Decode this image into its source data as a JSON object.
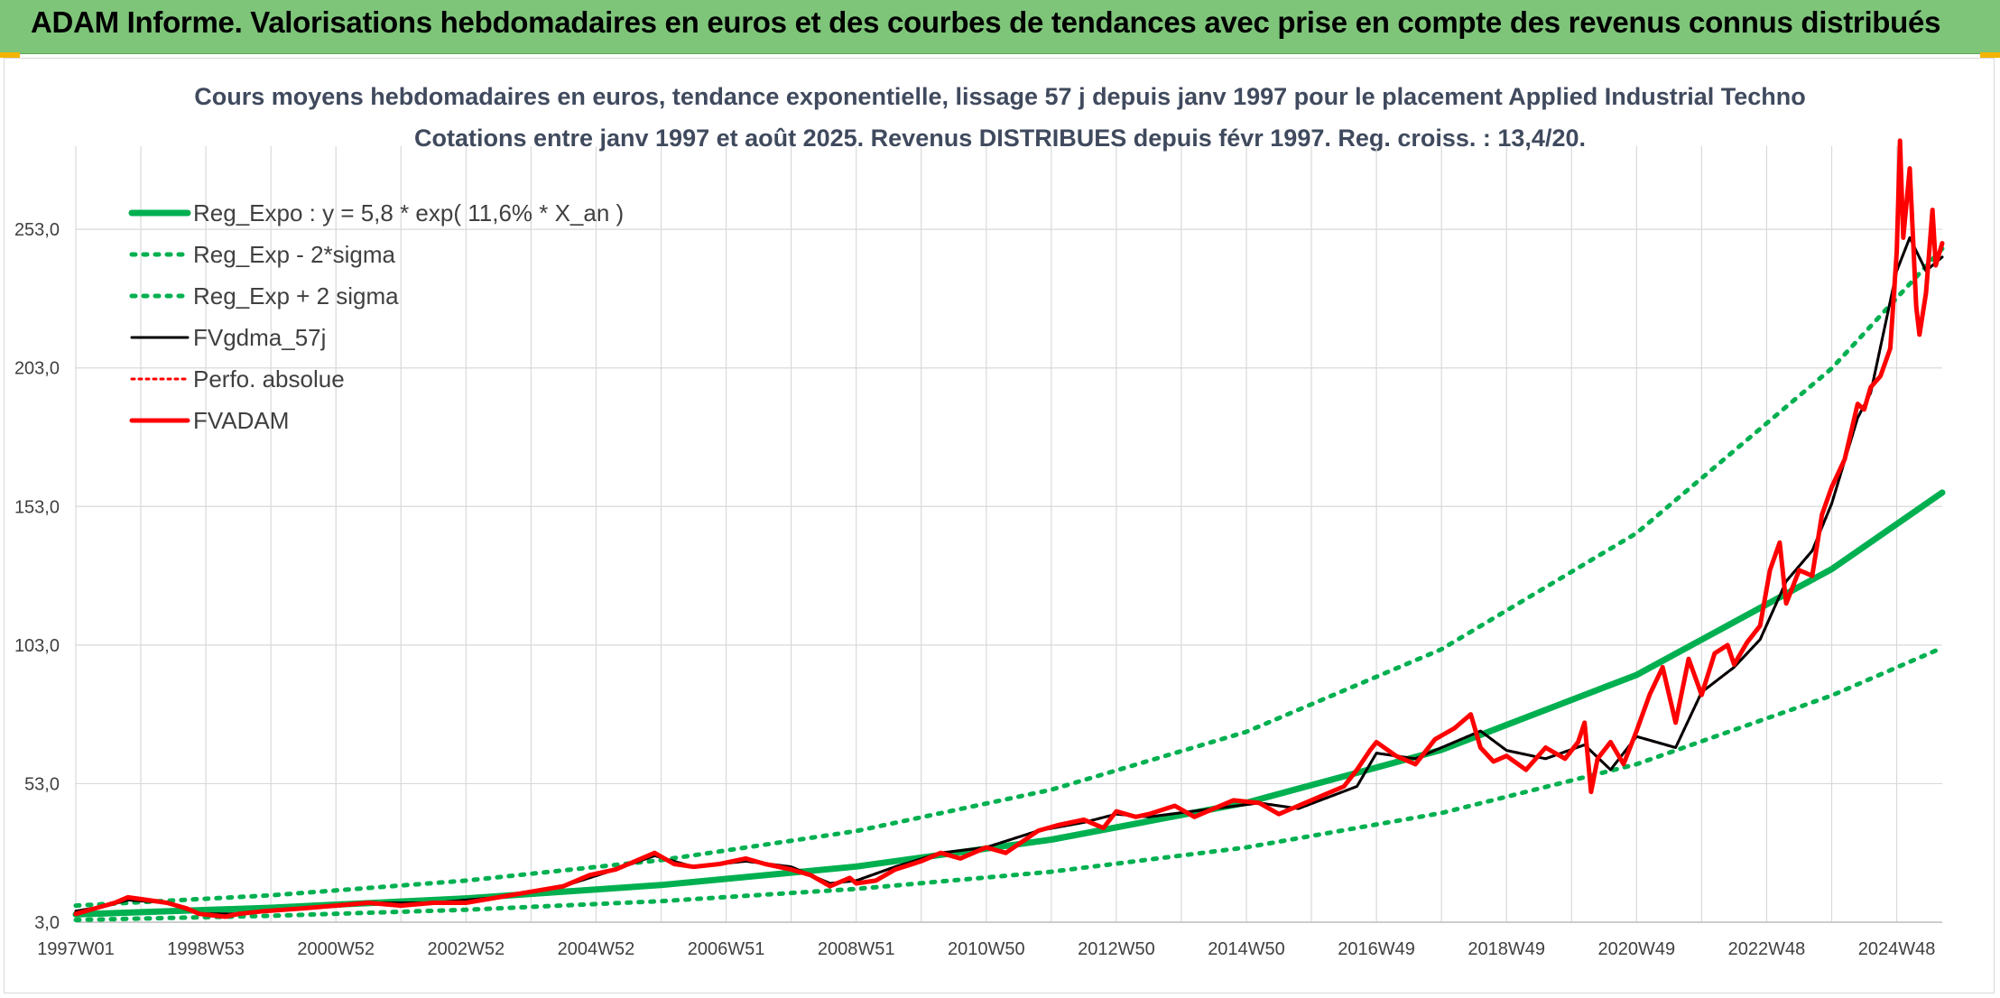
{
  "banner": {
    "title": "ADAM Informe. Valorisations hebdomadaires en euros et des courbes de tendances avec prise en compte des revenus connus distribués"
  },
  "colors": {
    "banner_bg": "#7ec57a",
    "regression": "#00b050",
    "smoothed": "#000000",
    "adam": "#ff0000",
    "grid": "#d9d9d9"
  },
  "chart_data": {
    "type": "line",
    "title": "Cours moyens hebdomadaires en euros, tendance exponentielle, lissage 57 j depuis janv 1997 pour le placement Applied Industrial Techno",
    "subtitle": "Cotations entre janv 1997 et août 2025. Revenus DISTRIBUES depuis févr 1997. Reg. croiss. : 13,4/20.",
    "xlabel": "",
    "ylabel": "",
    "xlim": [
      1997.0,
      2025.7
    ],
    "ylim": [
      3,
      283
    ],
    "y_ticks": [
      "3,0",
      "53,0",
      "103,0",
      "153,0",
      "203,0",
      "253,0"
    ],
    "y_tick_values": [
      3,
      53,
      103,
      153,
      203,
      253
    ],
    "x_ticks": [
      "1997W01",
      "1998W53",
      "2000W52",
      "2002W52",
      "2004W52",
      "2006W51",
      "2008W51",
      "2010W50",
      "2012W50",
      "2014W50",
      "2016W49",
      "2018W49",
      "2020W49",
      "2022W48",
      "2024W48"
    ],
    "x_tick_values": [
      1997.0,
      1999.0,
      2001.0,
      2003.0,
      2005.0,
      2007.0,
      2009.0,
      2011.0,
      2013.0,
      2015.0,
      2017.0,
      2019.0,
      2021.0,
      2023.0,
      2025.0
    ],
    "grid": true,
    "legend_position": "top-left",
    "series": [
      {
        "name": "Reg_Expo : y = 5,8 * exp( 11,6% *  X_an )",
        "style": "solid-thick",
        "color": "#00b050",
        "x": [
          1997.0,
          2000.0,
          2003.0,
          2006.0,
          2009.0,
          2012.0,
          2015.0,
          2018.0,
          2021.0,
          2024.0,
          2025.7
        ],
        "y": [
          5.8,
          8.2,
          11.6,
          16.4,
          23.1,
          32.8,
          46.1,
          65.2,
          92.2,
          130.4,
          158.0
        ]
      },
      {
        "name": "Reg_Exp - 2*sigma",
        "style": "dotted",
        "color": "#00b050",
        "x": [
          1997.0,
          2000.0,
          2003.0,
          2006.0,
          2009.0,
          2012.0,
          2015.0,
          2018.0,
          2021.0,
          2024.0,
          2025.7
        ],
        "y": [
          3.8,
          5.3,
          7.5,
          10.6,
          15.0,
          21.2,
          30.0,
          42.4,
          60.0,
          84.8,
          102.0
        ]
      },
      {
        "name": "Reg_Exp + 2 sigma",
        "style": "dotted",
        "color": "#00b050",
        "x": [
          1997.0,
          2000.0,
          2003.0,
          2006.0,
          2009.0,
          2012.0,
          2015.0,
          2018.0,
          2021.0,
          2024.0,
          2025.7
        ],
        "y": [
          9.0,
          12.7,
          18.0,
          25.4,
          35.9,
          50.8,
          71.7,
          101.5,
          143.4,
          202.8,
          246.0
        ]
      },
      {
        "name": "FVgdma_57j",
        "style": "solid",
        "color": "#000000",
        "x": [
          1997.0,
          1997.5,
          1997.8,
          1998.4,
          1998.9,
          1999.5,
          2000.5,
          2001.5,
          2002.5,
          2003.5,
          2004.5,
          2005.3,
          2005.9,
          2006.5,
          2007.3,
          2008.0,
          2008.6,
          2009.0,
          2009.6,
          2010.3,
          2011.0,
          2011.8,
          2012.5,
          2013.0,
          2013.5,
          2014.5,
          2015.2,
          2015.8,
          2016.7,
          2017.0,
          2017.6,
          2018.2,
          2018.6,
          2019.0,
          2019.6,
          2020.2,
          2020.6,
          2021.0,
          2021.6,
          2022.0,
          2022.5,
          2022.9,
          2023.3,
          2023.7,
          2024.0,
          2024.4,
          2024.6,
          2025.0,
          2025.2,
          2025.45,
          2025.7
        ],
        "y": [
          7,
          9,
          11,
          10,
          6,
          6,
          8,
          10,
          10,
          12,
          16,
          22,
          27,
          23,
          25,
          23,
          17,
          18,
          23,
          28,
          30,
          36,
          39,
          42,
          41,
          44,
          46,
          44,
          52,
          64,
          62,
          68,
          72,
          65,
          62,
          67,
          58,
          70,
          66,
          86,
          95,
          105,
          126,
          137,
          154,
          185,
          194,
          238,
          250,
          238,
          243
        ]
      },
      {
        "name": "Perfo. absolue",
        "style": "dotted",
        "color": "#ff0000",
        "x": [
          1997.0,
          1997.5,
          1997.8,
          1998.4,
          1998.9,
          1999.5,
          2000.5,
          2001.5,
          2002.5,
          2003.5,
          2004.5,
          2005.3,
          2005.9,
          2006.5,
          2007.3,
          2008.0,
          2008.6,
          2009.0,
          2009.6,
          2010.3,
          2011.0,
          2011.8,
          2012.5,
          2013.0,
          2013.5,
          2014.5,
          2015.2,
          2015.8,
          2016.7,
          2017.0,
          2017.6,
          2018.2,
          2018.6,
          2019.0,
          2019.6,
          2020.2,
          2020.6,
          2021.0,
          2021.6,
          2022.0,
          2022.5,
          2022.9,
          2023.3,
          2023.7,
          2024.0,
          2024.4,
          2024.6,
          2025.0,
          2025.2,
          2025.45,
          2025.7
        ],
        "y": [
          7,
          9,
          11,
          10,
          6,
          6,
          8,
          10,
          10,
          12,
          16,
          22,
          27,
          23,
          25,
          23,
          17,
          18,
          23,
          28,
          30,
          36,
          39,
          42,
          41,
          44,
          46,
          44,
          52,
          64,
          62,
          68,
          72,
          65,
          62,
          67,
          58,
          70,
          66,
          86,
          95,
          105,
          126,
          137,
          154,
          185,
          194,
          238,
          250,
          238,
          243
        ]
      },
      {
        "name": "FVADAM",
        "style": "solid-thick",
        "color": "#ff0000",
        "x": [
          1997.0,
          1997.3,
          1997.6,
          1997.8,
          1998.1,
          1998.4,
          1998.7,
          1998.9,
          1999.3,
          1999.5,
          1999.9,
          2000.5,
          2001.0,
          2001.5,
          2002.0,
          2002.5,
          2003.0,
          2003.5,
          2004.0,
          2004.5,
          2004.9,
          2005.3,
          2005.6,
          2005.9,
          2006.2,
          2006.5,
          2006.9,
          2007.3,
          2007.6,
          2008.0,
          2008.3,
          2008.6,
          2008.9,
          2009.0,
          2009.3,
          2009.6,
          2010.0,
          2010.3,
          2010.6,
          2011.0,
          2011.3,
          2011.8,
          2012.1,
          2012.5,
          2012.8,
          2013.0,
          2013.3,
          2013.5,
          2013.9,
          2014.2,
          2014.5,
          2014.8,
          2015.2,
          2015.5,
          2015.8,
          2016.2,
          2016.5,
          2016.7,
          2016.9,
          2017.0,
          2017.3,
          2017.6,
          2017.9,
          2018.2,
          2018.45,
          2018.6,
          2018.8,
          2019.0,
          2019.3,
          2019.6,
          2019.9,
          2020.1,
          2020.2,
          2020.3,
          2020.4,
          2020.6,
          2020.8,
          2021.0,
          2021.2,
          2021.4,
          2021.6,
          2021.8,
          2022.0,
          2022.2,
          2022.4,
          2022.5,
          2022.7,
          2022.9,
          2023.05,
          2023.2,
          2023.3,
          2023.5,
          2023.7,
          2023.85,
          2024.0,
          2024.2,
          2024.4,
          2024.5,
          2024.6,
          2024.75,
          2024.9,
          2025.0,
          2025.05,
          2025.1,
          2025.2,
          2025.3,
          2025.35,
          2025.45,
          2025.55,
          2025.6,
          2025.7
        ],
        "y": [
          6,
          8,
          10,
          12,
          11,
          10,
          8,
          6,
          5,
          6,
          7,
          8,
          9,
          10,
          9,
          10,
          10,
          12,
          14,
          16,
          20,
          22,
          25,
          28,
          24,
          23,
          24,
          26,
          24,
          22,
          20,
          16,
          19,
          17,
          18,
          22,
          25,
          28,
          26,
          30,
          28,
          36,
          38,
          40,
          37,
          43,
          41,
          42,
          45,
          41,
          44,
          47,
          46,
          42,
          45,
          49,
          52,
          58,
          65,
          68,
          63,
          60,
          69,
          73,
          78,
          66,
          61,
          63,
          58,
          66,
          62,
          68,
          75,
          50,
          62,
          68,
          60,
          72,
          85,
          95,
          75,
          98,
          85,
          100,
          103,
          96,
          104,
          110,
          130,
          140,
          118,
          130,
          128,
          150,
          160,
          170,
          190,
          188,
          196,
          200,
          210,
          245,
          285,
          250,
          275,
          225,
          215,
          230,
          260,
          240,
          248
        ]
      }
    ]
  }
}
